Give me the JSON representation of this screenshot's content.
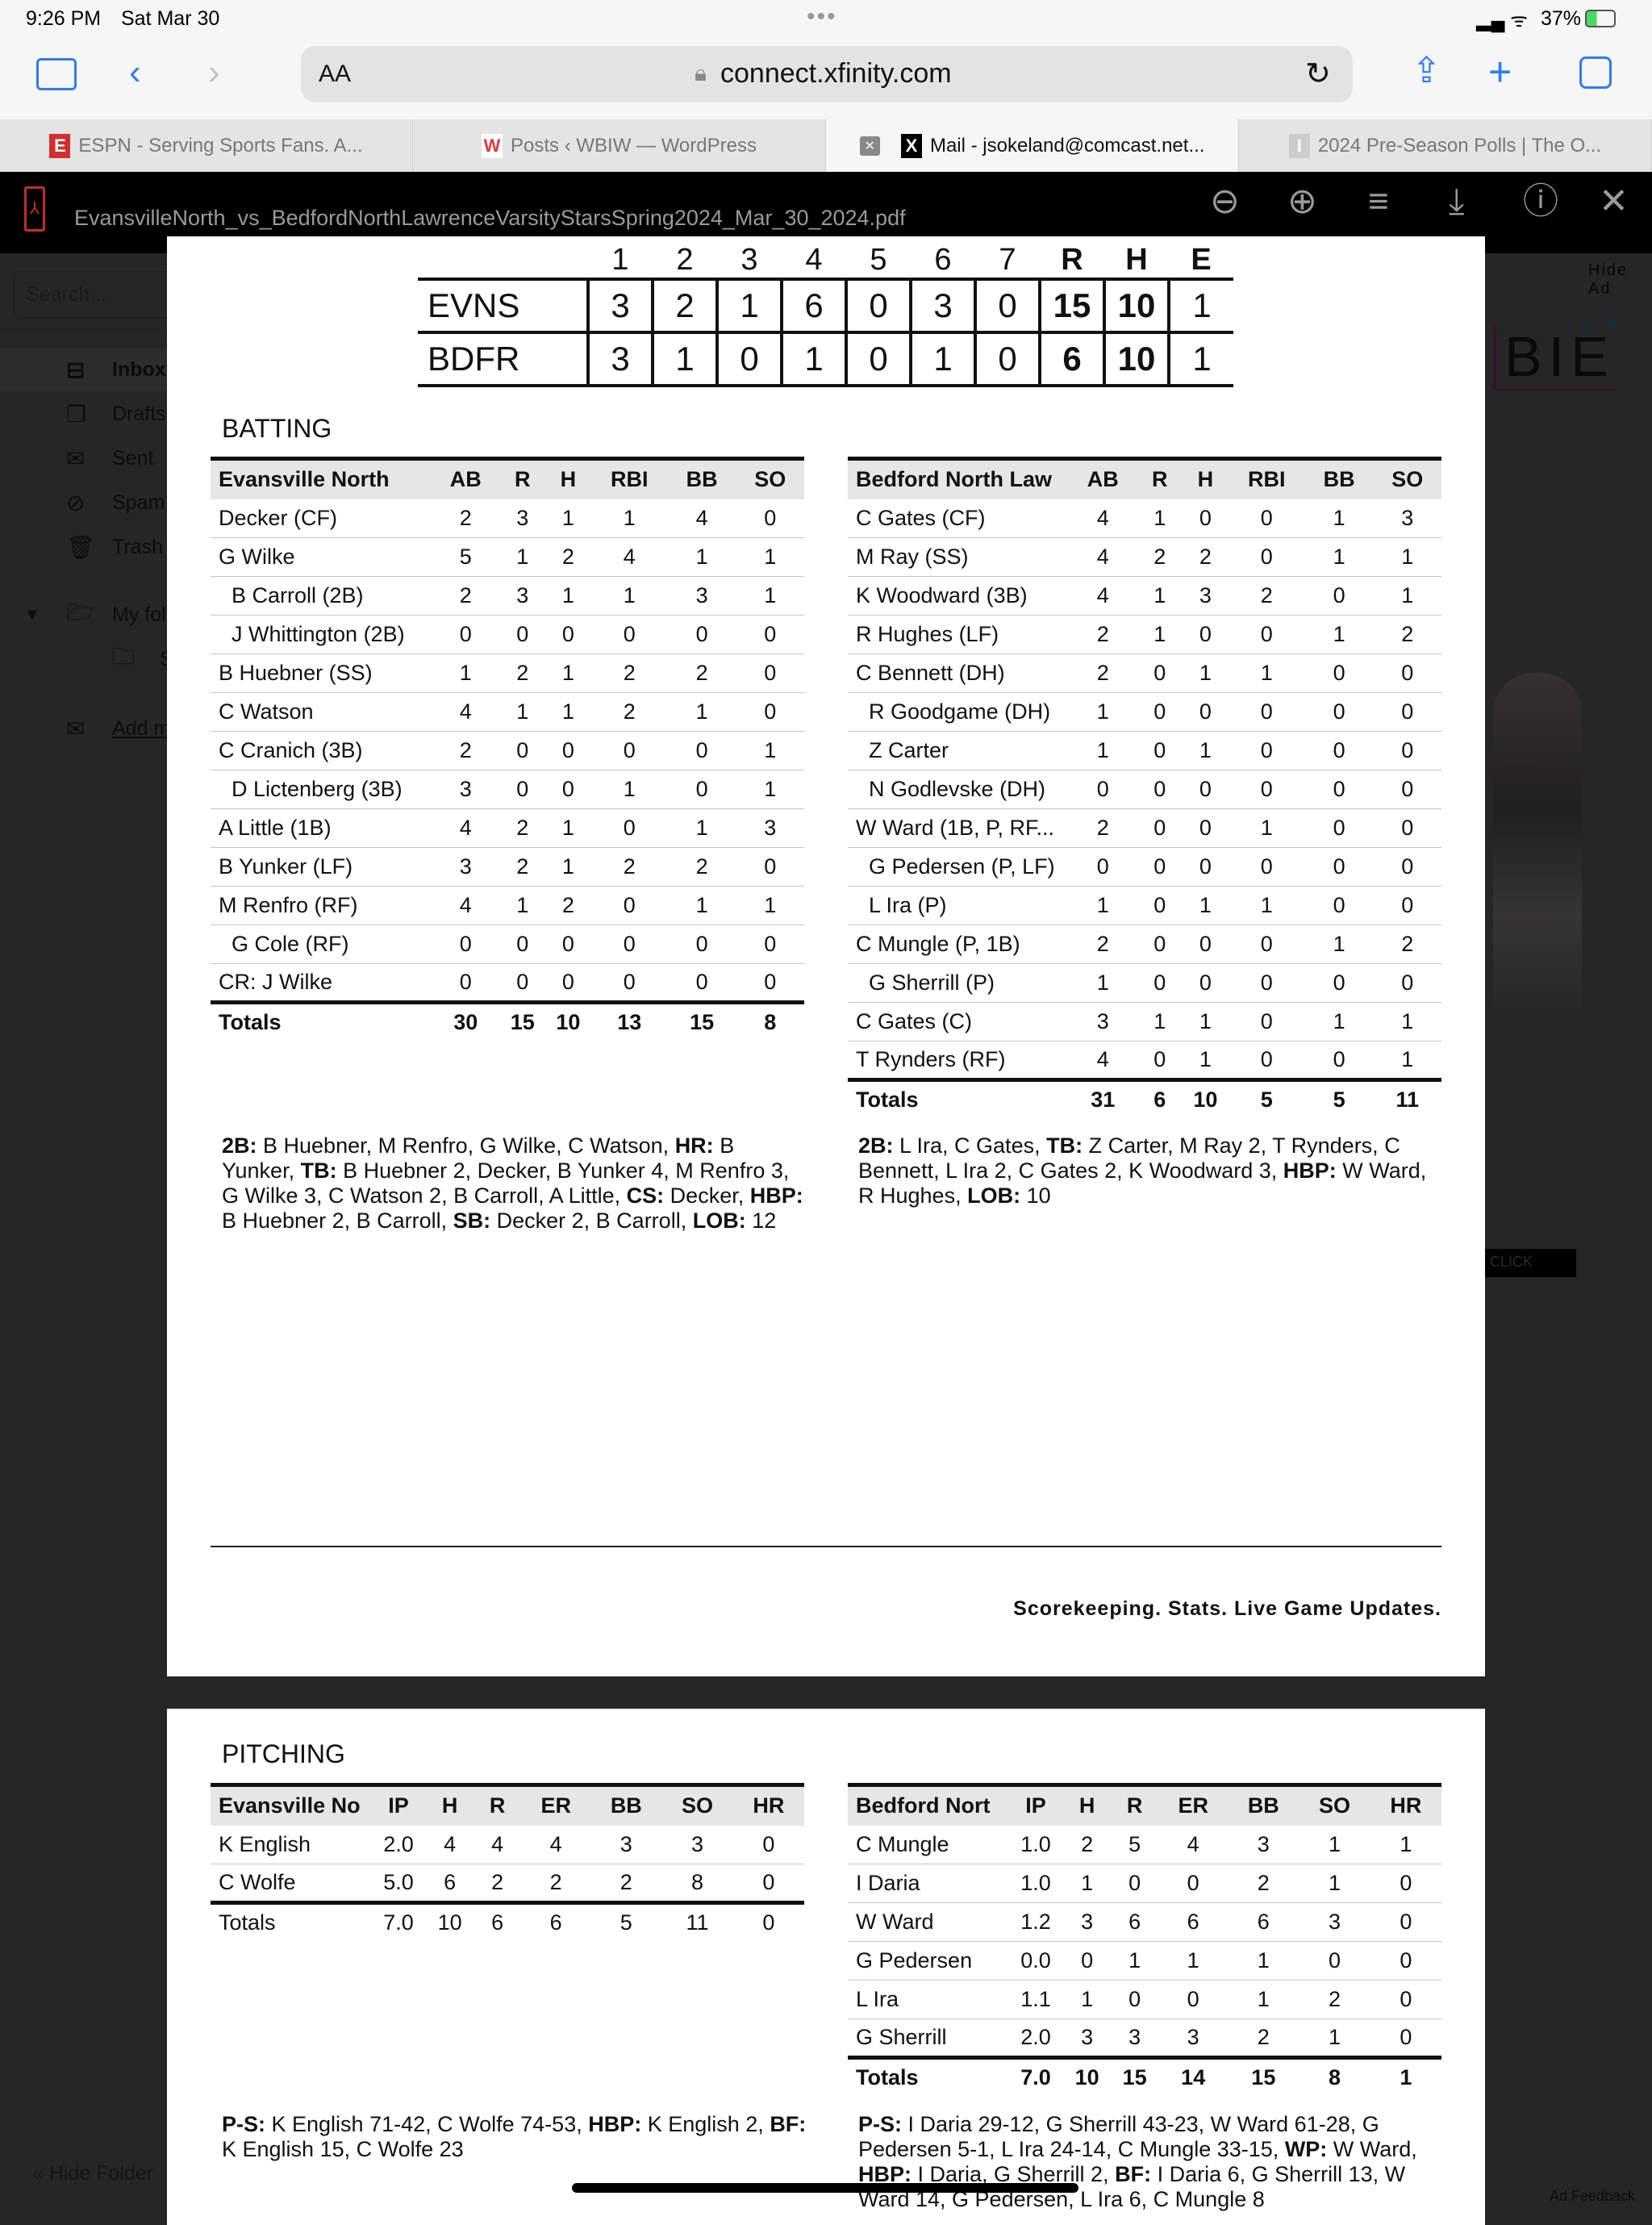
{
  "status": {
    "time": "9:26 PM",
    "date": "Sat Mar 30",
    "battery": "37%"
  },
  "browser": {
    "text_size": "AA",
    "url": "connect.xfinity.com",
    "tabs": [
      {
        "label": "ESPN - Serving Sports Fans. A...",
        "favicon": "E",
        "color": "#d32f2f"
      },
      {
        "label": "Posts ‹ WBIW — WordPress",
        "favicon": "W",
        "color": "#e53935"
      },
      {
        "label": "Mail - jsokeland@comcast.net...",
        "favicon": "X",
        "color": "#000000",
        "active": true
      },
      {
        "label": "2024 Pre-Season Polls | The O...",
        "favicon": "I",
        "color": "#cccccc"
      }
    ]
  },
  "pdf": {
    "filename": "EvansvilleNorth_vs_BedfordNorthLawrenceVarsityStarsSpring2024_Mar_30_2024.pdf"
  },
  "sidebar": {
    "search_placeholder": "Search...",
    "items": [
      {
        "label": "Inbox",
        "icon": "inbox-icon"
      },
      {
        "label": "Drafts",
        "icon": "drafts-icon"
      },
      {
        "label": "Sent",
        "icon": "sent-icon"
      },
      {
        "label": "Spam",
        "icon": "spam-icon"
      },
      {
        "label": "Trash",
        "icon": "trash-icon"
      }
    ],
    "my_folders": "My fol",
    "subfolder": "S",
    "add_mail": "Add m",
    "hide_folders": "« Hide Folder"
  },
  "ad": {
    "hide": "Hide Ad",
    "brand": "BIE",
    "cta": "CLICK",
    "feedback": "Ad Feedback"
  },
  "linescore": {
    "headers": [
      "1",
      "2",
      "3",
      "4",
      "5",
      "6",
      "7",
      "R",
      "H",
      "E"
    ],
    "teams": [
      {
        "name": "EVNS",
        "innings": [
          "3",
          "2",
          "1",
          "6",
          "0",
          "3",
          "0"
        ],
        "rhe": [
          "15",
          "10",
          "1"
        ]
      },
      {
        "name": "BDFR",
        "innings": [
          "3",
          "1",
          "0",
          "1",
          "0",
          "1",
          "0"
        ],
        "rhe": [
          "6",
          "10",
          "1"
        ]
      }
    ]
  },
  "batting": {
    "title": "BATTING",
    "home": {
      "columns": [
        "Evansville North",
        "AB",
        "R",
        "H",
        "RBI",
        "BB",
        "SO"
      ],
      "rows": [
        {
          "name": "Decker (CF)",
          "stats": [
            "2",
            "3",
            "1",
            "1",
            "4",
            "0"
          ]
        },
        {
          "name": "G Wilke",
          "stats": [
            "5",
            "1",
            "2",
            "4",
            "1",
            "1"
          ]
        },
        {
          "name": "B Carroll (2B)",
          "indent": true,
          "stats": [
            "2",
            "3",
            "1",
            "1",
            "3",
            "1"
          ]
        },
        {
          "name": "J Whittington (2B)",
          "indent": true,
          "stats": [
            "0",
            "0",
            "0",
            "0",
            "0",
            "0"
          ]
        },
        {
          "name": "B Huebner (SS)",
          "stats": [
            "1",
            "2",
            "1",
            "2",
            "2",
            "0"
          ]
        },
        {
          "name": "C Watson",
          "stats": [
            "4",
            "1",
            "1",
            "2",
            "1",
            "0"
          ]
        },
        {
          "name": "C Cranich (3B)",
          "stats": [
            "2",
            "0",
            "0",
            "0",
            "0",
            "1"
          ]
        },
        {
          "name": "D Lictenberg (3B)",
          "indent": true,
          "stats": [
            "3",
            "0",
            "0",
            "1",
            "0",
            "1"
          ]
        },
        {
          "name": "A Little (1B)",
          "stats": [
            "4",
            "2",
            "1",
            "0",
            "1",
            "3"
          ]
        },
        {
          "name": "B Yunker (LF)",
          "stats": [
            "3",
            "2",
            "1",
            "2",
            "2",
            "0"
          ]
        },
        {
          "name": "M Renfro (RF)",
          "stats": [
            "4",
            "1",
            "2",
            "0",
            "1",
            "1"
          ]
        },
        {
          "name": "G Cole (RF)",
          "indent": true,
          "stats": [
            "0",
            "0",
            "0",
            "0",
            "0",
            "0"
          ]
        },
        {
          "name": "CR: J Wilke",
          "stats": [
            "0",
            "0",
            "0",
            "0",
            "0",
            "0"
          ]
        }
      ],
      "totals": {
        "name": "Totals",
        "stats": [
          "30",
          "15",
          "10",
          "13",
          "15",
          "8"
        ]
      },
      "notes": [
        {
          "k": "2B:",
          "v": " B Huebner, M Renfro, G Wilke, C Watson, "
        },
        {
          "k": "HR:",
          "v": " B Yunker, "
        },
        {
          "k": "TB:",
          "v": " B Huebner 2, Decker, B Yunker 4, M Renfro 3, G Wilke 3, C Watson 2, B Carroll, A Little, "
        },
        {
          "k": "CS:",
          "v": " Decker, "
        },
        {
          "k": "HBP:",
          "v": " B Huebner 2, B Carroll, "
        },
        {
          "k": "SB:",
          "v": " Decker 2, B Carroll, "
        },
        {
          "k": "LOB:",
          "v": " 12"
        }
      ]
    },
    "away": {
      "columns": [
        "Bedford North Law",
        "AB",
        "R",
        "H",
        "RBI",
        "BB",
        "SO"
      ],
      "rows": [
        {
          "name": "C Gates (CF)",
          "stats": [
            "4",
            "1",
            "0",
            "0",
            "1",
            "3"
          ]
        },
        {
          "name": "M Ray (SS)",
          "stats": [
            "4",
            "2",
            "2",
            "0",
            "1",
            "1"
          ]
        },
        {
          "name": "K Woodward (3B)",
          "stats": [
            "4",
            "1",
            "3",
            "2",
            "0",
            "1"
          ]
        },
        {
          "name": "R Hughes (LF)",
          "stats": [
            "2",
            "1",
            "0",
            "0",
            "1",
            "2"
          ]
        },
        {
          "name": "C Bennett (DH)",
          "stats": [
            "2",
            "0",
            "1",
            "1",
            "0",
            "0"
          ]
        },
        {
          "name": "R Goodgame (DH)",
          "indent": true,
          "stats": [
            "1",
            "0",
            "0",
            "0",
            "0",
            "0"
          ]
        },
        {
          "name": "Z Carter",
          "indent": true,
          "stats": [
            "1",
            "0",
            "1",
            "0",
            "0",
            "0"
          ]
        },
        {
          "name": "N Godlevske (DH)",
          "indent": true,
          "stats": [
            "0",
            "0",
            "0",
            "0",
            "0",
            "0"
          ]
        },
        {
          "name": "W Ward (1B, P, RF...",
          "stats": [
            "2",
            "0",
            "0",
            "1",
            "0",
            "0"
          ]
        },
        {
          "name": "G Pedersen (P, LF)",
          "indent": true,
          "stats": [
            "0",
            "0",
            "0",
            "0",
            "0",
            "0"
          ]
        },
        {
          "name": "L Ira (P)",
          "indent": true,
          "stats": [
            "1",
            "0",
            "1",
            "1",
            "0",
            "0"
          ]
        },
        {
          "name": "C Mungle (P, 1B)",
          "stats": [
            "2",
            "0",
            "0",
            "0",
            "1",
            "2"
          ]
        },
        {
          "name": "G Sherrill (P)",
          "indent": true,
          "stats": [
            "1",
            "0",
            "0",
            "0",
            "0",
            "0"
          ]
        },
        {
          "name": "C Gates (C)",
          "stats": [
            "3",
            "1",
            "1",
            "0",
            "1",
            "1"
          ]
        },
        {
          "name": "T Rynders (RF)",
          "stats": [
            "4",
            "0",
            "1",
            "0",
            "0",
            "1"
          ]
        }
      ],
      "totals": {
        "name": "Totals",
        "stats": [
          "31",
          "6",
          "10",
          "5",
          "5",
          "11"
        ]
      },
      "notes": [
        {
          "k": "2B:",
          "v": " L Ira, C Gates, "
        },
        {
          "k": "TB:",
          "v": " Z Carter, M Ray 2, T Rynders, C Bennett, L Ira 2, C Gates 2, K Woodward 3, "
        },
        {
          "k": "HBP:",
          "v": " W Ward, R Hughes, "
        },
        {
          "k": "LOB:",
          "v": " 10"
        }
      ]
    }
  },
  "footer": {
    "tagline": "Scorekeeping. Stats. Live Game Updates."
  },
  "pitching": {
    "title": "PITCHING",
    "home": {
      "columns": [
        "Evansville No",
        "IP",
        "H",
        "R",
        "ER",
        "BB",
        "SO",
        "HR"
      ],
      "rows": [
        {
          "name": "K English",
          "stats": [
            "2.0",
            "4",
            "4",
            "4",
            "3",
            "3",
            "0"
          ]
        },
        {
          "name": "C Wolfe",
          "stats": [
            "5.0",
            "6",
            "2",
            "2",
            "2",
            "8",
            "0"
          ]
        }
      ],
      "totals": {
        "name": "Totals",
        "stats": [
          "7.0",
          "10",
          "6",
          "6",
          "5",
          "11",
          "0"
        ]
      },
      "notes": [
        {
          "k": "P-S:",
          "v": " K English 71-42, C Wolfe 74-53, "
        },
        {
          "k": "HBP:",
          "v": " K English 2, "
        },
        {
          "k": "BF:",
          "v": " K English 15, C Wolfe 23"
        }
      ]
    },
    "away": {
      "columns": [
        "Bedford Nort",
        "IP",
        "H",
        "R",
        "ER",
        "BB",
        "SO",
        "HR"
      ],
      "rows": [
        {
          "name": "C Mungle",
          "stats": [
            "1.0",
            "2",
            "5",
            "4",
            "3",
            "1",
            "1"
          ]
        },
        {
          "name": "I Daria",
          "stats": [
            "1.0",
            "1",
            "0",
            "0",
            "2",
            "1",
            "0"
          ]
        },
        {
          "name": "W Ward",
          "stats": [
            "1.2",
            "3",
            "6",
            "6",
            "6",
            "3",
            "0"
          ]
        },
        {
          "name": "G Pedersen",
          "stats": [
            "0.0",
            "0",
            "1",
            "1",
            "1",
            "0",
            "0"
          ]
        },
        {
          "name": "L Ira",
          "stats": [
            "1.1",
            "1",
            "0",
            "0",
            "1",
            "2",
            "0"
          ]
        },
        {
          "name": "G Sherrill",
          "stats": [
            "2.0",
            "3",
            "3",
            "3",
            "2",
            "1",
            "0"
          ]
        }
      ],
      "totals": {
        "name": "Totals",
        "stats": [
          "7.0",
          "10",
          "15",
          "14",
          "15",
          "8",
          "1"
        ]
      },
      "notes": [
        {
          "k": "P-S:",
          "v": " I Daria 29-12, G Sherrill 43-23, W Ward 61-28, G Pedersen 5-1, L Ira 24-14, C Mungle 33-15, "
        },
        {
          "k": "WP:",
          "v": " W Ward, "
        },
        {
          "k": "HBP:",
          "v": " I Daria, G Sherrill 2, "
        },
        {
          "k": "BF:",
          "v": " I Daria 6, G Sherrill 13, W Ward 14, G Pedersen, L Ira 6, C Mungle 8"
        }
      ]
    }
  }
}
